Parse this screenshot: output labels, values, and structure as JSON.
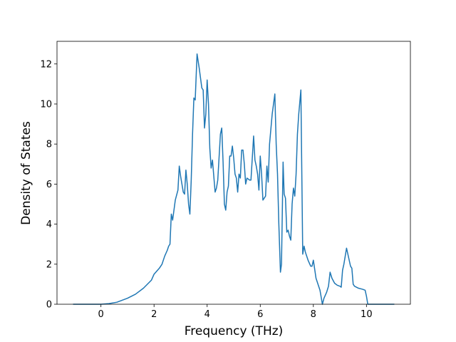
{
  "chart_data": {
    "type": "line",
    "xlabel": "Frequency (THz)",
    "ylabel": "Density of States",
    "xlim": [
      -1.655,
      11.655
    ],
    "ylim": [
      0,
      13.13
    ],
    "xticks": [
      0,
      2,
      4,
      6,
      8,
      10
    ],
    "yticks": [
      0,
      2,
      4,
      6,
      8,
      10,
      12
    ],
    "series": [
      {
        "color": "#1f77b4",
        "x": [
          -1.05,
          0,
          0.3,
          0.6,
          1.0,
          1.3,
          1.6,
          1.9,
          2.0,
          2.2,
          2.3,
          2.4,
          2.5,
          2.55,
          2.6,
          2.65,
          2.7,
          2.8,
          2.9,
          2.95,
          3.0,
          3.1,
          3.15,
          3.2,
          3.25,
          3.3,
          3.35,
          3.4,
          3.45,
          3.5,
          3.55,
          3.62,
          3.7,
          3.8,
          3.85,
          3.9,
          3.95,
          4.0,
          4.05,
          4.1,
          4.15,
          4.2,
          4.25,
          4.3,
          4.35,
          4.4,
          4.5,
          4.55,
          4.6,
          4.65,
          4.7,
          4.75,
          4.8,
          4.85,
          4.9,
          4.95,
          5.0,
          5.05,
          5.1,
          5.15,
          5.2,
          5.25,
          5.3,
          5.35,
          5.4,
          5.45,
          5.5,
          5.6,
          5.65,
          5.75,
          5.8,
          5.85,
          5.9,
          5.95,
          6.0,
          6.05,
          6.1,
          6.15,
          6.2,
          6.25,
          6.3,
          6.35,
          6.45,
          6.55,
          6.6,
          6.65,
          6.7,
          6.76,
          6.8,
          6.86,
          6.9,
          6.95,
          7.0,
          7.05,
          7.1,
          7.15,
          7.2,
          7.25,
          7.3,
          7.35,
          7.4,
          7.45,
          7.53,
          7.57,
          7.6,
          7.65,
          7.7,
          7.8,
          7.9,
          7.95,
          8.0,
          8.1,
          8.25,
          8.34,
          8.4,
          8.5,
          8.57,
          8.63,
          8.7,
          8.8,
          8.9,
          9.0,
          9.05,
          9.1,
          9.15,
          9.25,
          9.3,
          9.4,
          9.45,
          9.5,
          9.55,
          9.7,
          9.85,
          9.95,
          10.0,
          10.05,
          11.05
        ],
        "values": [
          0,
          0,
          0.03,
          0.1,
          0.3,
          0.5,
          0.8,
          1.2,
          1.5,
          1.8,
          2.0,
          2.4,
          2.7,
          2.9,
          3.0,
          4.5,
          4.2,
          5.2,
          5.7,
          6.9,
          6.4,
          5.6,
          5.5,
          6.7,
          6.0,
          5.0,
          4.5,
          6.2,
          8.5,
          10.3,
          10.2,
          12.5,
          11.8,
          10.8,
          10.7,
          8.8,
          9.5,
          11.2,
          10.0,
          7.8,
          6.8,
          7.2,
          6.4,
          5.6,
          5.8,
          6.2,
          8.5,
          8.8,
          7.1,
          5.0,
          4.7,
          5.6,
          5.9,
          7.4,
          7.4,
          7.9,
          7.3,
          6.5,
          6.3,
          5.6,
          6.5,
          6.3,
          7.7,
          7.7,
          7.0,
          6.0,
          6.3,
          6.2,
          6.2,
          8.4,
          7.2,
          6.9,
          6.5,
          5.7,
          7.4,
          6.5,
          5.2,
          5.3,
          5.4,
          6.9,
          6.1,
          8.0,
          9.5,
          10.5,
          8.0,
          6.5,
          4.0,
          1.6,
          2.0,
          7.1,
          5.5,
          5.3,
          3.6,
          3.7,
          3.4,
          3.2,
          5.0,
          5.8,
          5.4,
          6.5,
          8.5,
          9.5,
          10.7,
          6.0,
          2.5,
          2.9,
          2.6,
          2.2,
          1.9,
          1.9,
          2.2,
          1.3,
          0.7,
          0.0,
          0.3,
          0.6,
          0.9,
          1.6,
          1.3,
          1.05,
          0.95,
          0.9,
          0.85,
          1.7,
          2.0,
          2.8,
          2.5,
          1.9,
          1.8,
          1.0,
          0.9,
          0.8,
          0.75,
          0.7,
          0.4,
          0.0,
          0.0
        ]
      }
    ]
  }
}
